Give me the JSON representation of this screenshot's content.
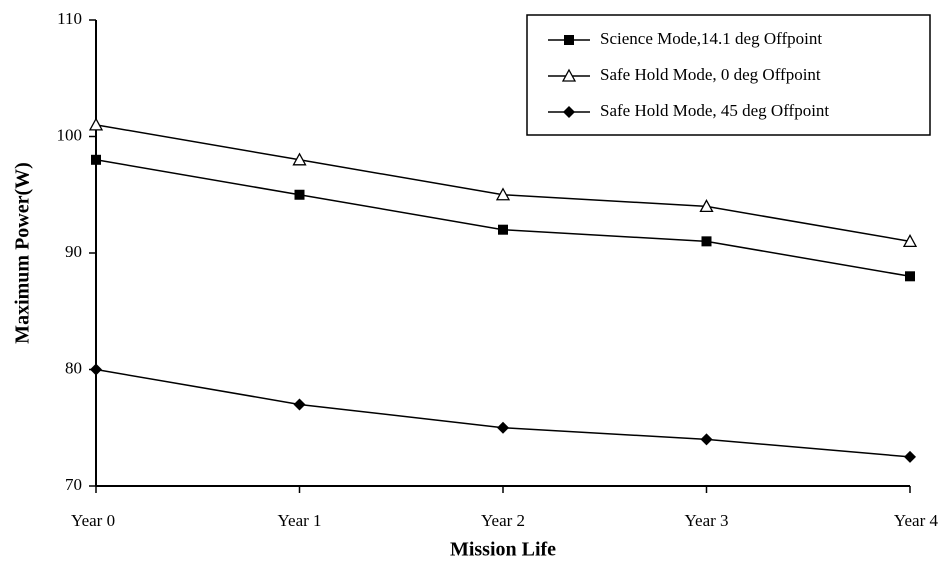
{
  "chart_data": {
    "type": "line",
    "x_label": "Mission Life",
    "y_label": "Maximum Power(W)",
    "categories": [
      "Year 0",
      "Year 1",
      "Year 2",
      "Year 3",
      "Year 4"
    ],
    "series": [
      {
        "name": "Science Mode,14.1 deg Offpoint",
        "color": "#000000",
        "marker": "square",
        "values": [
          98,
          95,
          92,
          91,
          88
        ]
      },
      {
        "name": "Safe Hold Mode, 0 deg Offpoint",
        "color": "#000000",
        "marker": "triangle-open",
        "values": [
          101,
          98,
          95,
          94,
          91
        ]
      },
      {
        "name": "Safe Hold Mode, 45 deg Offpoint",
        "color": "#000000",
        "marker": "diamond",
        "values": [
          80,
          77,
          75,
          74,
          72.5
        ]
      }
    ],
    "ylim": [
      70,
      110
    ],
    "yticks": [
      70,
      80,
      90,
      100,
      110
    ],
    "legend": "upper right",
    "grid": false
  }
}
